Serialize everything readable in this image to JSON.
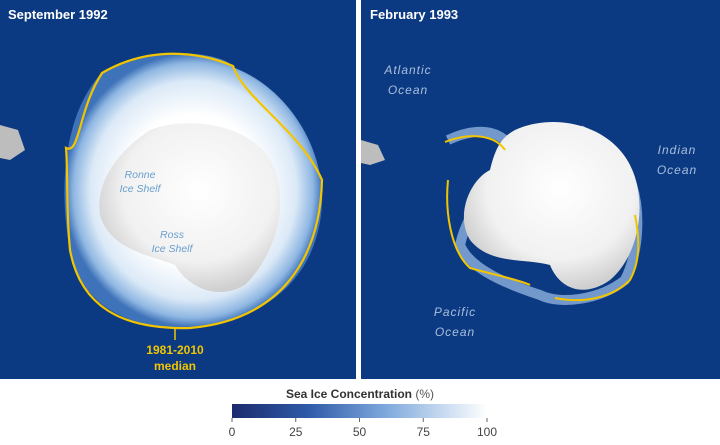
{
  "panels": [
    {
      "title": "September 1992",
      "labels": [
        {
          "lines": [
            "Ronne",
            "Ice Shelf"
          ]
        },
        {
          "lines": [
            "Ross",
            "Ice Shelf"
          ]
        }
      ],
      "annotation": {
        "lines": [
          "1981-2010",
          "median"
        ]
      }
    },
    {
      "title": "February 1993",
      "labels": [
        {
          "lines": [
            "Atlantic",
            "Ocean"
          ]
        },
        {
          "lines": [
            "Indian",
            "Ocean"
          ]
        },
        {
          "lines": [
            "Pacific",
            "Ocean"
          ]
        }
      ]
    }
  ],
  "colorbar": {
    "title": "Sea Ice Concentration",
    "unit": "(%)",
    "range": [
      0,
      100
    ],
    "ticks": [
      0,
      25,
      50,
      75,
      100
    ]
  }
}
